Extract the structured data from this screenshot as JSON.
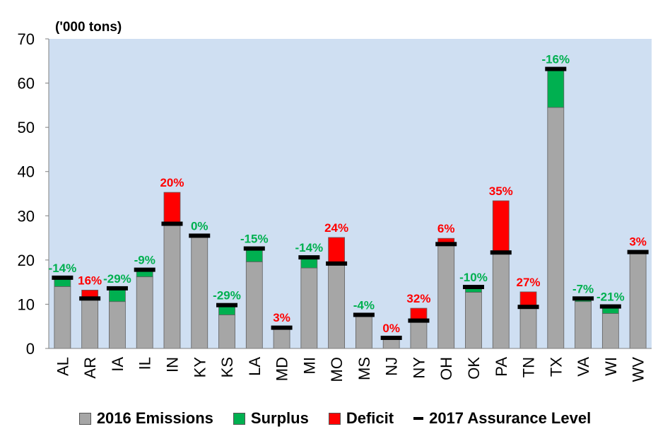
{
  "chart_data": {
    "type": "bar",
    "unit_label": "('000 tons)",
    "ylim": [
      0,
      70
    ],
    "yticks": [
      0,
      10,
      20,
      30,
      40,
      50,
      60,
      70
    ],
    "categories": [
      "AL",
      "AR",
      "IA",
      "IL",
      "IN",
      "KY",
      "KS",
      "LA",
      "MD",
      "MI",
      "MO",
      "MS",
      "NJ",
      "NY",
      "OH",
      "OK",
      "PA",
      "TN",
      "TX",
      "VA",
      "WI",
      "WV"
    ],
    "series": [
      {
        "name": "2016 Emissions",
        "color": "#a6a6a6",
        "values": [
          14.0,
          11.0,
          10.6,
          16.2,
          28.0,
          25.5,
          7.6,
          19.6,
          4.7,
          18.2,
          19.0,
          7.4,
          2.3,
          6.2,
          23.5,
          12.7,
          21.6,
          9.4,
          54.5,
          10.6,
          7.9,
          21.4
        ]
      },
      {
        "name": "Surplus",
        "color": "#00b050",
        "values": [
          2.0,
          0,
          3.0,
          1.6,
          0,
          0,
          2.2,
          3.0,
          0,
          2.4,
          0,
          0,
          0,
          0,
          0,
          1.2,
          0,
          0,
          8.7,
          0.7,
          1.6,
          0
        ]
      },
      {
        "name": "Deficit",
        "color": "#ff0000",
        "values": [
          0,
          2.2,
          0,
          0,
          7.3,
          0,
          0,
          0,
          0.1,
          0,
          6.1,
          0,
          0,
          2.9,
          1.4,
          0,
          11.8,
          3.4,
          0,
          0,
          0,
          0.6
        ]
      },
      {
        "name": "2017 Assurance Level",
        "color": "#000000",
        "values": [
          16.0,
          11.3,
          13.6,
          17.8,
          28.2,
          25.5,
          9.8,
          22.6,
          4.7,
          20.6,
          19.2,
          7.6,
          2.4,
          6.3,
          23.6,
          13.9,
          21.7,
          9.4,
          63.2,
          11.3,
          9.5,
          21.8
        ]
      }
    ],
    "labels": [
      "-14%",
      "16%",
      "-29%",
      "-9%",
      "20%",
      "0%",
      "-29%",
      "-15%",
      "3%",
      "-14%",
      "24%",
      "-4%",
      "0%",
      "32%",
      "6%",
      "-10%",
      "35%",
      "27%",
      "-16%",
      "-7%",
      "-21%",
      "3%"
    ],
    "label_colors": [
      "#00b050",
      "#ff0000",
      "#00b050",
      "#00b050",
      "#ff0000",
      "#00b050",
      "#00b050",
      "#00b050",
      "#ff0000",
      "#00b050",
      "#ff0000",
      "#00b050",
      "#ff0000",
      "#ff0000",
      "#ff0000",
      "#00b050",
      "#ff0000",
      "#ff0000",
      "#00b050",
      "#00b050",
      "#00b050",
      "#ff0000"
    ],
    "plot_background": "#cfdff2",
    "grid": false,
    "legend_position": "bottom"
  }
}
